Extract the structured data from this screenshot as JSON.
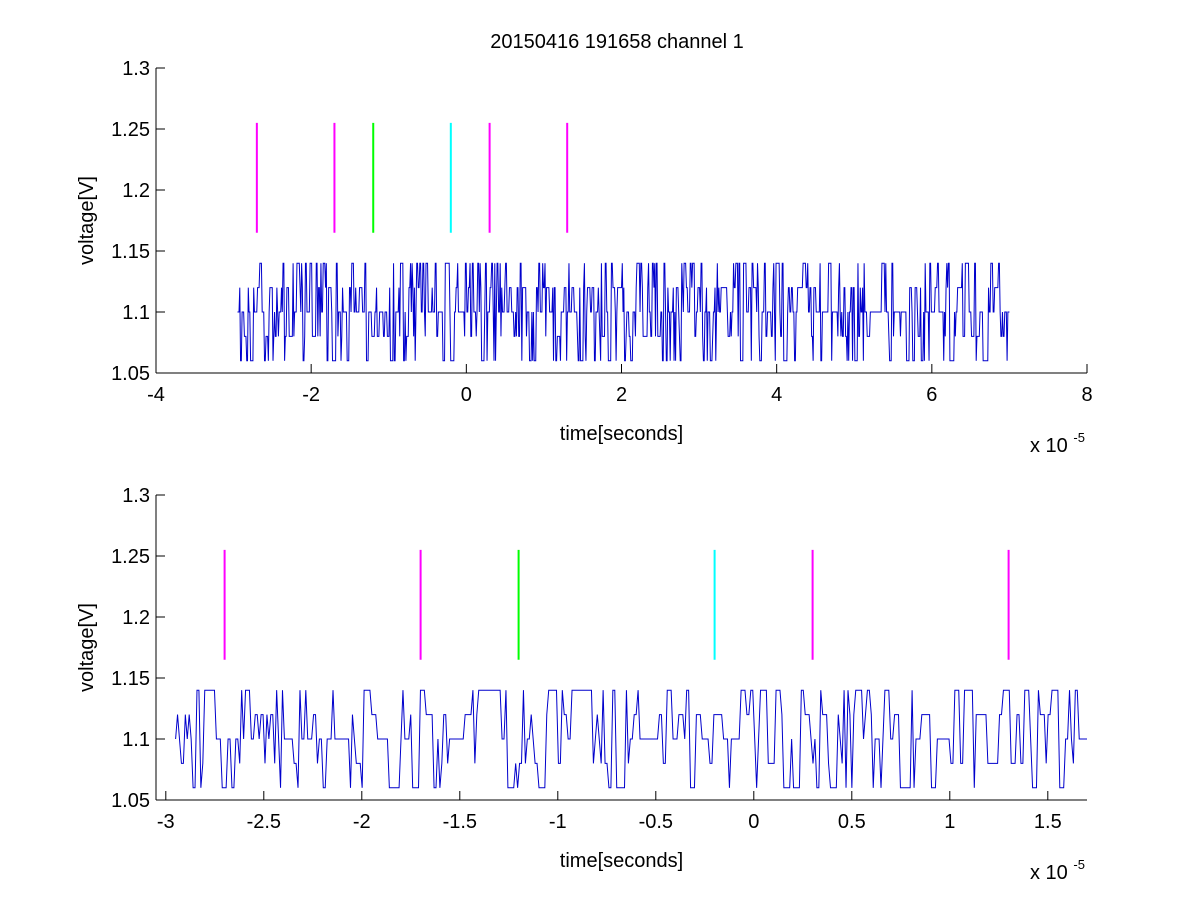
{
  "figure": {
    "title": "20150416 191658 channel 1"
  },
  "chart_data": [
    {
      "type": "line",
      "title": "20150416 191658 channel 1",
      "xlabel": "time[seconds]",
      "ylabel": "voltage[V]",
      "x_exponent_label": "x 10",
      "x_exponent": "-5",
      "xlim": [
        -4,
        8
      ],
      "ylim": [
        1.05,
        1.3
      ],
      "xticks": [
        -4,
        -2,
        0,
        2,
        4,
        6,
        8
      ],
      "xtick_labels": [
        "-4",
        "-2",
        "0",
        "2",
        "4",
        "6",
        "8"
      ],
      "yticks": [
        1.05,
        1.1,
        1.15,
        1.2,
        1.25,
        1.3
      ],
      "ytick_labels": [
        "1.05",
        "1.1",
        "1.15",
        "1.2",
        "1.25",
        "1.3"
      ],
      "grid": false,
      "series": [
        {
          "color": "#0000cc",
          "x_range": [
            -2.95,
            7.0
          ],
          "levels": [
            1.06,
            1.08,
            1.1,
            1.12,
            1.14
          ],
          "baseline": 1.1,
          "samples": 1000
        }
      ],
      "markers": [
        {
          "x": -2.7,
          "y_range": [
            1.165,
            1.255
          ],
          "color": "#ff00ff"
        },
        {
          "x": -1.7,
          "y_range": [
            1.165,
            1.255
          ],
          "color": "#ff00ff"
        },
        {
          "x": -1.2,
          "y_range": [
            1.165,
            1.255
          ],
          "color": "#00ff00"
        },
        {
          "x": -0.2,
          "y_range": [
            1.165,
            1.255
          ],
          "color": "#00ffff"
        },
        {
          "x": 0.3,
          "y_range": [
            1.165,
            1.255
          ],
          "color": "#ff00ff"
        },
        {
          "x": 1.3,
          "y_range": [
            1.165,
            1.255
          ],
          "color": "#ff00ff"
        }
      ]
    },
    {
      "type": "line",
      "title": "",
      "xlabel": "time[seconds]",
      "ylabel": "voltage[V]",
      "x_exponent_label": "x 10",
      "x_exponent": "-5",
      "xlim": [
        -3.05,
        1.7
      ],
      "ylim": [
        1.05,
        1.3
      ],
      "xticks": [
        -3,
        -2.5,
        -2,
        -1.5,
        -1,
        -0.5,
        0,
        0.5,
        1,
        1.5
      ],
      "xtick_labels": [
        "-3",
        "-2.5",
        "-2",
        "-1.5",
        "-1",
        "-0.5",
        "0",
        "0.5",
        "1",
        "1.5"
      ],
      "yticks": [
        1.05,
        1.1,
        1.15,
        1.2,
        1.25,
        1.3
      ],
      "ytick_labels": [
        "1.05",
        "1.1",
        "1.15",
        "1.2",
        "1.25",
        "1.3"
      ],
      "grid": false,
      "series": [
        {
          "color": "#0000cc",
          "x_range": [
            -2.95,
            1.7
          ],
          "levels": [
            1.06,
            1.08,
            1.1,
            1.12,
            1.14
          ],
          "baseline": 1.1,
          "samples": 470
        }
      ],
      "markers": [
        {
          "x": -2.7,
          "y_range": [
            1.165,
            1.255
          ],
          "color": "#ff00ff"
        },
        {
          "x": -1.7,
          "y_range": [
            1.165,
            1.255
          ],
          "color": "#ff00ff"
        },
        {
          "x": -1.2,
          "y_range": [
            1.165,
            1.255
          ],
          "color": "#00ff00"
        },
        {
          "x": -0.2,
          "y_range": [
            1.165,
            1.255
          ],
          "color": "#00ffff"
        },
        {
          "x": 0.3,
          "y_range": [
            1.165,
            1.255
          ],
          "color": "#ff00ff"
        },
        {
          "x": 1.3,
          "y_range": [
            1.165,
            1.255
          ],
          "color": "#ff00ff"
        }
      ]
    }
  ]
}
